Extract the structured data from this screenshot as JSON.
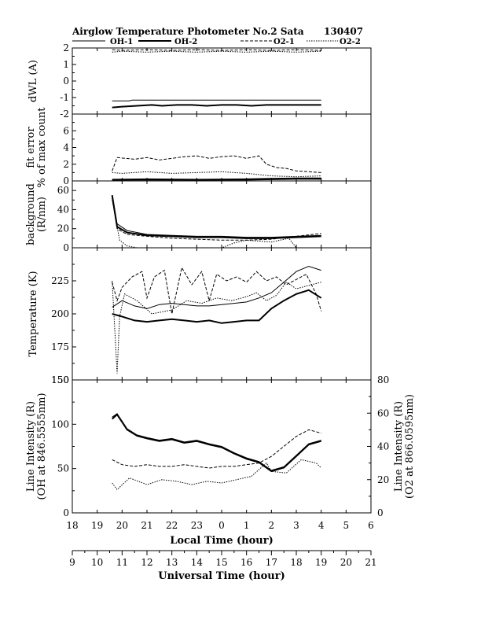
{
  "header": {
    "title": "Airglow Temperature Photometer No.2  Sata",
    "date": "130407"
  },
  "legend": [
    {
      "name": "OH-1",
      "style": "solid-thin"
    },
    {
      "name": "OH-2",
      "style": "solid-thick"
    },
    {
      "name": "O2-1",
      "style": "dashed"
    },
    {
      "name": "O2-2",
      "style": "dotted"
    }
  ],
  "chart_data": [
    {
      "type": "line",
      "panel": "dwl",
      "ylabel": "dWL (A)",
      "ylim": [
        -2,
        2
      ],
      "yticks": [
        -2,
        -1,
        0,
        1,
        2
      ],
      "series": [
        {
          "name": "OH-1",
          "x": [
            19.6,
            20.3,
            20.4,
            21,
            22,
            23,
            24,
            25,
            26,
            27,
            28
          ],
          "y": [
            -1.2,
            -1.2,
            -1.15,
            -1.15,
            -1.15,
            -1.15,
            -1.15,
            -1.15,
            -1.15,
            -1.15,
            -1.15
          ]
        },
        {
          "name": "OH-2",
          "x": [
            19.6,
            20,
            20.6,
            21.2,
            21.6,
            22.2,
            22.8,
            23.4,
            24,
            24.6,
            25.2,
            25.8,
            26.4,
            27,
            27.6,
            28
          ],
          "y": [
            -1.6,
            -1.55,
            -1.5,
            -1.45,
            -1.5,
            -1.45,
            -1.45,
            -1.5,
            -1.45,
            -1.45,
            -1.5,
            -1.45,
            -1.45,
            -1.45,
            -1.45,
            -1.45
          ]
        },
        {
          "name": "O2-1",
          "x": [
            19.6,
            20,
            21,
            22,
            23,
            24,
            25,
            26,
            27,
            28
          ],
          "y": [
            1.9,
            1.85,
            1.9,
            1.85,
            1.9,
            1.85,
            1.9,
            1.85,
            1.9,
            1.85
          ]
        },
        {
          "name": "O2-2",
          "x": [
            19.6,
            20,
            21,
            22,
            23,
            24,
            25,
            26,
            27,
            28
          ],
          "y": [
            1.75,
            1.8,
            1.75,
            1.8,
            1.75,
            1.8,
            1.75,
            1.8,
            1.75,
            1.8
          ]
        }
      ]
    },
    {
      "type": "line",
      "panel": "fit_error",
      "ylabel": [
        "fit error",
        "% of max count"
      ],
      "ylim": [
        0,
        8
      ],
      "yticks": [
        0,
        2,
        4,
        6
      ],
      "series": [
        {
          "name": "OH-1",
          "x": [
            19.6,
            21,
            23,
            25,
            26,
            27,
            28
          ],
          "y": [
            0.1,
            0.1,
            0.1,
            0.1,
            0.15,
            0.2,
            0.2
          ]
        },
        {
          "name": "OH-2",
          "x": [
            19.6,
            21,
            23,
            25,
            26,
            27,
            28
          ],
          "y": [
            0.15,
            0.2,
            0.15,
            0.2,
            0.25,
            0.3,
            0.3
          ]
        },
        {
          "name": "O2-1",
          "x": [
            19.6,
            19.8,
            20.5,
            21,
            21.5,
            22,
            22.5,
            23,
            23.5,
            24,
            24.5,
            25,
            25.5,
            25.8,
            26.2,
            26.6,
            27,
            27.5,
            28
          ],
          "y": [
            1.2,
            2.8,
            2.6,
            2.8,
            2.5,
            2.7,
            2.9,
            3.0,
            2.7,
            2.9,
            3.0,
            2.7,
            3.0,
            2.0,
            1.6,
            1.5,
            1.2,
            1.1,
            1.0
          ]
        },
        {
          "name": "O2-2",
          "x": [
            19.6,
            20,
            21,
            22,
            23,
            24,
            25,
            26,
            27,
            28
          ],
          "y": [
            1.0,
            0.9,
            1.1,
            0.9,
            1.0,
            1.1,
            0.9,
            0.6,
            0.5,
            0.6
          ]
        }
      ]
    },
    {
      "type": "line",
      "panel": "background",
      "ylabel": [
        "background",
        "(R/nm)"
      ],
      "ylim": [
        0,
        70
      ],
      "yticks": [
        0,
        20,
        40,
        60
      ],
      "series": [
        {
          "name": "OH-1",
          "x": [
            19.6,
            19.8,
            20.2,
            21,
            22,
            23,
            24,
            25,
            26,
            27,
            28
          ],
          "y": [
            55,
            25,
            18,
            14,
            13,
            12,
            12,
            11,
            11,
            12,
            13
          ]
        },
        {
          "name": "OH-2",
          "x": [
            19.6,
            19.8,
            20.2,
            21,
            22,
            23,
            24,
            25,
            26,
            27,
            28
          ],
          "y": [
            55,
            22,
            16,
            13,
            12,
            11,
            11,
            10,
            10,
            11,
            12
          ]
        },
        {
          "name": "O2-1",
          "x": [
            19.6,
            19.8,
            20.2,
            21,
            22,
            23,
            24,
            25,
            26,
            27,
            28
          ],
          "y": [
            52,
            20,
            14,
            12,
            10,
            9,
            8,
            8,
            9,
            12,
            15
          ]
        },
        {
          "name": "O2-2",
          "x": [
            19.6,
            19.9,
            20.2,
            20.6,
            21.4,
            22.5,
            23,
            24,
            24.5,
            25,
            26,
            26.7,
            27,
            28
          ],
          "y": [
            50,
            8,
            2,
            0,
            0,
            0,
            0,
            0,
            5,
            8,
            6,
            10,
            0,
            0
          ]
        }
      ]
    },
    {
      "type": "line",
      "panel": "temperature",
      "ylabel": "Temperature (K)",
      "ylim": [
        150,
        250
      ],
      "yticks": [
        150,
        175,
        200,
        225
      ],
      "series": [
        {
          "name": "OH-1",
          "x": [
            19.6,
            20,
            20.5,
            21,
            21.5,
            22,
            22.5,
            23,
            23.5,
            24,
            24.5,
            25,
            25.5,
            26,
            26.5,
            27,
            27.5,
            28
          ],
          "y": [
            205,
            210,
            206,
            204,
            207,
            208,
            207,
            206,
            206,
            207,
            208,
            209,
            212,
            216,
            224,
            232,
            236,
            233
          ]
        },
        {
          "name": "OH-2",
          "x": [
            19.6,
            20,
            20.5,
            21,
            21.5,
            22,
            22.5,
            23,
            23.5,
            24,
            24.5,
            25,
            25.5,
            26,
            26.5,
            27,
            27.5,
            28
          ],
          "y": [
            200,
            198,
            195,
            194,
            195,
            196,
            195,
            194,
            195,
            193,
            194,
            195,
            195,
            204,
            210,
            215,
            218,
            212
          ]
        },
        {
          "name": "O2-1",
          "x": [
            19.6,
            19.8,
            20,
            20.4,
            20.8,
            21,
            21.3,
            21.7,
            22,
            22.4,
            22.8,
            23.2,
            23.5,
            23.8,
            24.2,
            24.6,
            25,
            25.4,
            25.8,
            26.2,
            26.6,
            27,
            27.4,
            27.8,
            28
          ],
          "y": [
            224,
            210,
            220,
            228,
            232,
            212,
            228,
            233,
            200,
            235,
            222,
            232,
            210,
            230,
            225,
            228,
            224,
            232,
            225,
            228,
            222,
            226,
            230,
            215,
            202
          ]
        },
        {
          "name": "O2-2",
          "x": [
            19.6,
            19.8,
            19.9,
            20.1,
            20.6,
            21.2,
            22,
            22.6,
            23.2,
            23.8,
            24.4,
            25,
            25.4,
            25.8,
            26.2,
            26.6,
            27,
            27.4,
            28
          ],
          "y": [
            225,
            155,
            198,
            215,
            210,
            200,
            203,
            210,
            208,
            212,
            210,
            213,
            216,
            210,
            214,
            224,
            219,
            221,
            224
          ]
        }
      ]
    },
    {
      "type": "line",
      "panel": "intensity",
      "xlabel": "Local Time (hour)",
      "xlabel2": "Universal Time (hour)",
      "xlim": [
        18,
        30
      ],
      "xticks_local": [
        "18",
        "19",
        "20",
        "21",
        "22",
        "23",
        "0",
        "1",
        "2",
        "3",
        "4",
        "5",
        "6"
      ],
      "xticks_ut": [
        "9",
        "10",
        "11",
        "12",
        "13",
        "14",
        "15",
        "16",
        "17",
        "18",
        "19",
        "20",
        "21"
      ],
      "ylabel": [
        "Line Intensity (R)",
        "(OH at 846.5555nm)"
      ],
      "ylim": [
        0,
        150
      ],
      "yticks": [
        0,
        50,
        100,
        150
      ],
      "ylabel_right": [
        "Line Intensity (R)",
        "(O2 at 866.0595nm)"
      ],
      "ylim_right": [
        0,
        80
      ],
      "yticks_right": [
        0,
        20,
        40,
        60,
        80
      ],
      "series": [
        {
          "name": "OH-1",
          "axis": "left",
          "x": [
            19.6,
            19.8,
            20.2,
            20.6,
            21,
            21.5,
            22,
            22.5,
            23,
            23.5,
            24,
            24.5,
            25,
            25.5,
            26,
            26.5,
            27,
            27.5,
            28
          ],
          "y": [
            108,
            112,
            95,
            88,
            85,
            82,
            84,
            80,
            82,
            78,
            75,
            68,
            62,
            58,
            48,
            52,
            65,
            78,
            82
          ]
        },
        {
          "name": "OH-2",
          "axis": "left",
          "x": [
            19.6,
            19.8,
            20.2,
            20.6,
            21,
            21.5,
            22,
            22.5,
            23,
            23.5,
            24,
            24.5,
            25,
            25.5,
            26,
            26.5,
            27,
            27.5,
            28
          ],
          "y": [
            106,
            111,
            94,
            87,
            84,
            81,
            83,
            79,
            81,
            77,
            74,
            67,
            61,
            57,
            47,
            51,
            64,
            77,
            81
          ]
        },
        {
          "name": "O2-1",
          "axis": "right",
          "x": [
            19.6,
            20,
            20.5,
            21,
            21.5,
            22,
            22.5,
            23,
            23.5,
            24,
            24.5,
            25,
            25.5,
            26,
            26.5,
            27,
            27.5,
            28
          ],
          "y": [
            32,
            29,
            28,
            29,
            28,
            28,
            29,
            28,
            27,
            28,
            28,
            29,
            30,
            34,
            40,
            46,
            50,
            48
          ]
        },
        {
          "name": "O2-2",
          "axis": "right",
          "x": [
            19.6,
            19.8,
            20.3,
            21,
            21.6,
            22.2,
            22.8,
            23.4,
            24,
            24.6,
            25.2,
            25.8,
            26,
            26.6,
            27.2,
            27.8,
            28
          ],
          "y": [
            18,
            14,
            21,
            17,
            20,
            19,
            17,
            19,
            18,
            20,
            22,
            30,
            25,
            24,
            32,
            30,
            27
          ]
        }
      ]
    }
  ]
}
